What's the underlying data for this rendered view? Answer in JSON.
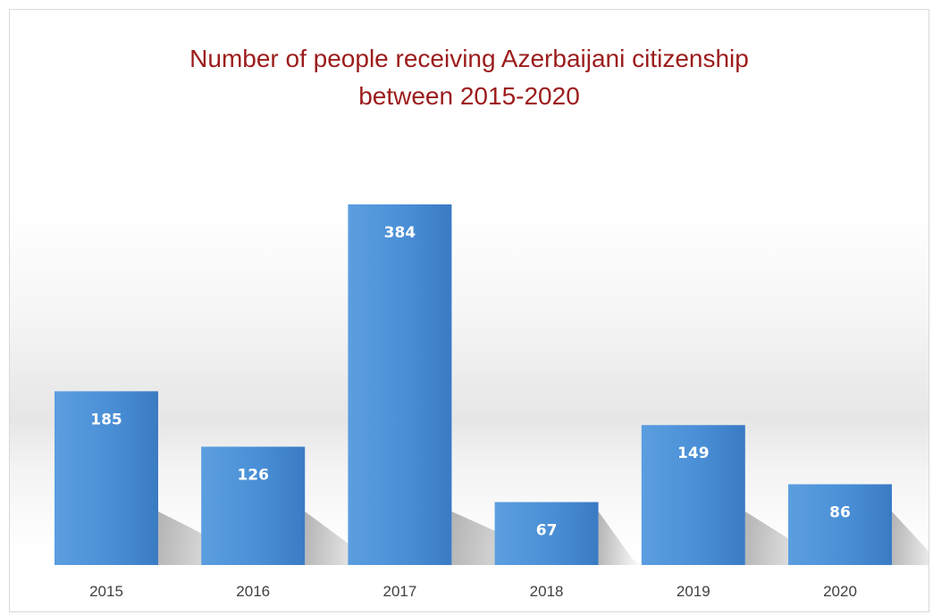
{
  "chart_data": {
    "type": "bar",
    "title": "Number of people receiving Azerbaijani citizenship between 2015-2020",
    "title_lines": [
      "Number of people receiving Azerbaijani citizenship",
      "between 2015-2020"
    ],
    "categories": [
      "2015",
      "2016",
      "2017",
      "2018",
      "2019",
      "2020"
    ],
    "values": [
      185,
      126,
      384,
      67,
      149,
      86
    ],
    "xlabel": "",
    "ylabel": "",
    "ylim": [
      0,
      384
    ],
    "grid": false,
    "legend": "none",
    "data_labels": true,
    "colors": {
      "bar": "#4a8fd6",
      "bar_light": "#5b9ee0",
      "bar_dark": "#3a7bc4",
      "title": "#9c1c1c",
      "label": "#404040"
    }
  }
}
